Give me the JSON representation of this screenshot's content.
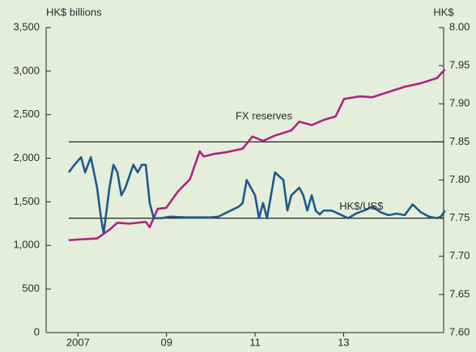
{
  "chart_data": {
    "type": "line",
    "y_label": "HK$ billions",
    "y2_label": "HK$",
    "annotations": [
      {
        "text": "FX reserves",
        "x": 2011.7,
        "y": 2480
      },
      {
        "text": "HK$/US$",
        "x": 2013.9,
        "y": 7.765,
        "axis": "y2"
      }
    ],
    "xlim": [
      2006.78,
      2015.76
    ],
    "xticks": [
      {
        "value": 2007.5,
        "label": "2007"
      },
      {
        "value": 2009.5,
        "label": "09"
      },
      {
        "value": 2011.5,
        "label": "11"
      },
      {
        "value": 2013.5,
        "label": "13"
      }
    ],
    "ylim": [
      0,
      3500
    ],
    "yticks": [
      0,
      500,
      {
        "value": 1000,
        "label": "1,000"
      },
      {
        "value": 1500,
        "label": "1,500"
      },
      {
        "value": 2000,
        "label": "2,000"
      },
      {
        "value": 2500,
        "label": "2,500"
      },
      {
        "value": 3000,
        "label": "3,000"
      },
      {
        "value": 3500,
        "label": "3,500"
      }
    ],
    "y2lim": [
      7.6,
      8.0
    ],
    "y2ticks": [
      {
        "value": 7.6,
        "label": "7.60"
      },
      {
        "value": 7.65,
        "label": "7.65"
      },
      {
        "value": 7.7,
        "label": "7.70"
      },
      {
        "value": 7.75,
        "label": "7.75"
      },
      {
        "value": 7.8,
        "label": "7.80"
      },
      {
        "value": 7.85,
        "label": "7.85"
      },
      {
        "value": 7.9,
        "label": "7.90"
      },
      {
        "value": 7.95,
        "label": "7.95"
      },
      {
        "value": 8.0,
        "label": "8.00"
      }
    ],
    "reference_lines": [
      {
        "value": 7.85,
        "axis": "y2",
        "color": "#222222"
      },
      {
        "value": 7.75,
        "axis": "y2",
        "color": "#222222"
      }
    ],
    "series": [
      {
        "name": "FX reserves",
        "color": "#b0237f",
        "x": [
          2007.29,
          2007.57,
          2007.93,
          2008.21,
          2008.39,
          2008.66,
          2009.03,
          2009.12,
          2009.3,
          2009.49,
          2009.76,
          2010.03,
          2010.25,
          2010.34,
          2010.58,
          2010.86,
          2011.22,
          2011.44,
          2011.68,
          2011.95,
          2012.32,
          2012.5,
          2012.78,
          2013.05,
          2013.32,
          2013.51,
          2013.87,
          2014.15,
          2014.51,
          2014.88,
          2015.24,
          2015.61,
          2015.79
        ],
        "values": [
          1060,
          1070,
          1080,
          1180,
          1260,
          1250,
          1270,
          1210,
          1420,
          1430,
          1620,
          1760,
          2080,
          2020,
          2050,
          2070,
          2110,
          2250,
          2200,
          2260,
          2320,
          2420,
          2380,
          2440,
          2480,
          2680,
          2710,
          2700,
          2760,
          2820,
          2860,
          2920,
          3020
        ]
      },
      {
        "name": "HK$/US$",
        "color": "#1c5a8a",
        "axis": "y2",
        "x": [
          2007.29,
          2007.42,
          2007.57,
          2007.66,
          2007.79,
          2007.93,
          2008.02,
          2008.08,
          2008.21,
          2008.3,
          2008.39,
          2008.48,
          2008.57,
          2008.75,
          2008.85,
          2008.94,
          2009.03,
          2009.12,
          2009.21,
          2009.39,
          2009.58,
          2009.94,
          2010.49,
          2010.67,
          2010.95,
          2011.13,
          2011.22,
          2011.31,
          2011.5,
          2011.59,
          2011.68,
          2011.77,
          2011.86,
          2011.95,
          2012.14,
          2012.23,
          2012.32,
          2012.5,
          2012.59,
          2012.68,
          2012.78,
          2012.87,
          2012.96,
          2013.05,
          2013.23,
          2013.42,
          2013.6,
          2013.78,
          2013.96,
          2014.15,
          2014.33,
          2014.51,
          2014.7,
          2014.88,
          2015.06,
          2015.24,
          2015.43,
          2015.61,
          2015.7,
          2015.79
        ],
        "values": [
          7.81,
          7.82,
          7.83,
          7.81,
          7.83,
          7.79,
          7.75,
          7.73,
          7.79,
          7.82,
          7.81,
          7.78,
          7.79,
          7.82,
          7.81,
          7.82,
          7.82,
          7.77,
          7.75,
          7.75,
          7.752,
          7.751,
          7.751,
          7.752,
          7.76,
          7.765,
          7.77,
          7.8,
          7.78,
          7.75,
          7.77,
          7.75,
          7.78,
          7.81,
          7.8,
          7.76,
          7.78,
          7.79,
          7.78,
          7.76,
          7.78,
          7.76,
          7.755,
          7.76,
          7.76,
          7.755,
          7.75,
          7.756,
          7.76,
          7.765,
          7.758,
          7.754,
          7.756,
          7.754,
          7.768,
          7.758,
          7.752,
          7.75,
          7.752,
          7.76
        ]
      }
    ]
  }
}
